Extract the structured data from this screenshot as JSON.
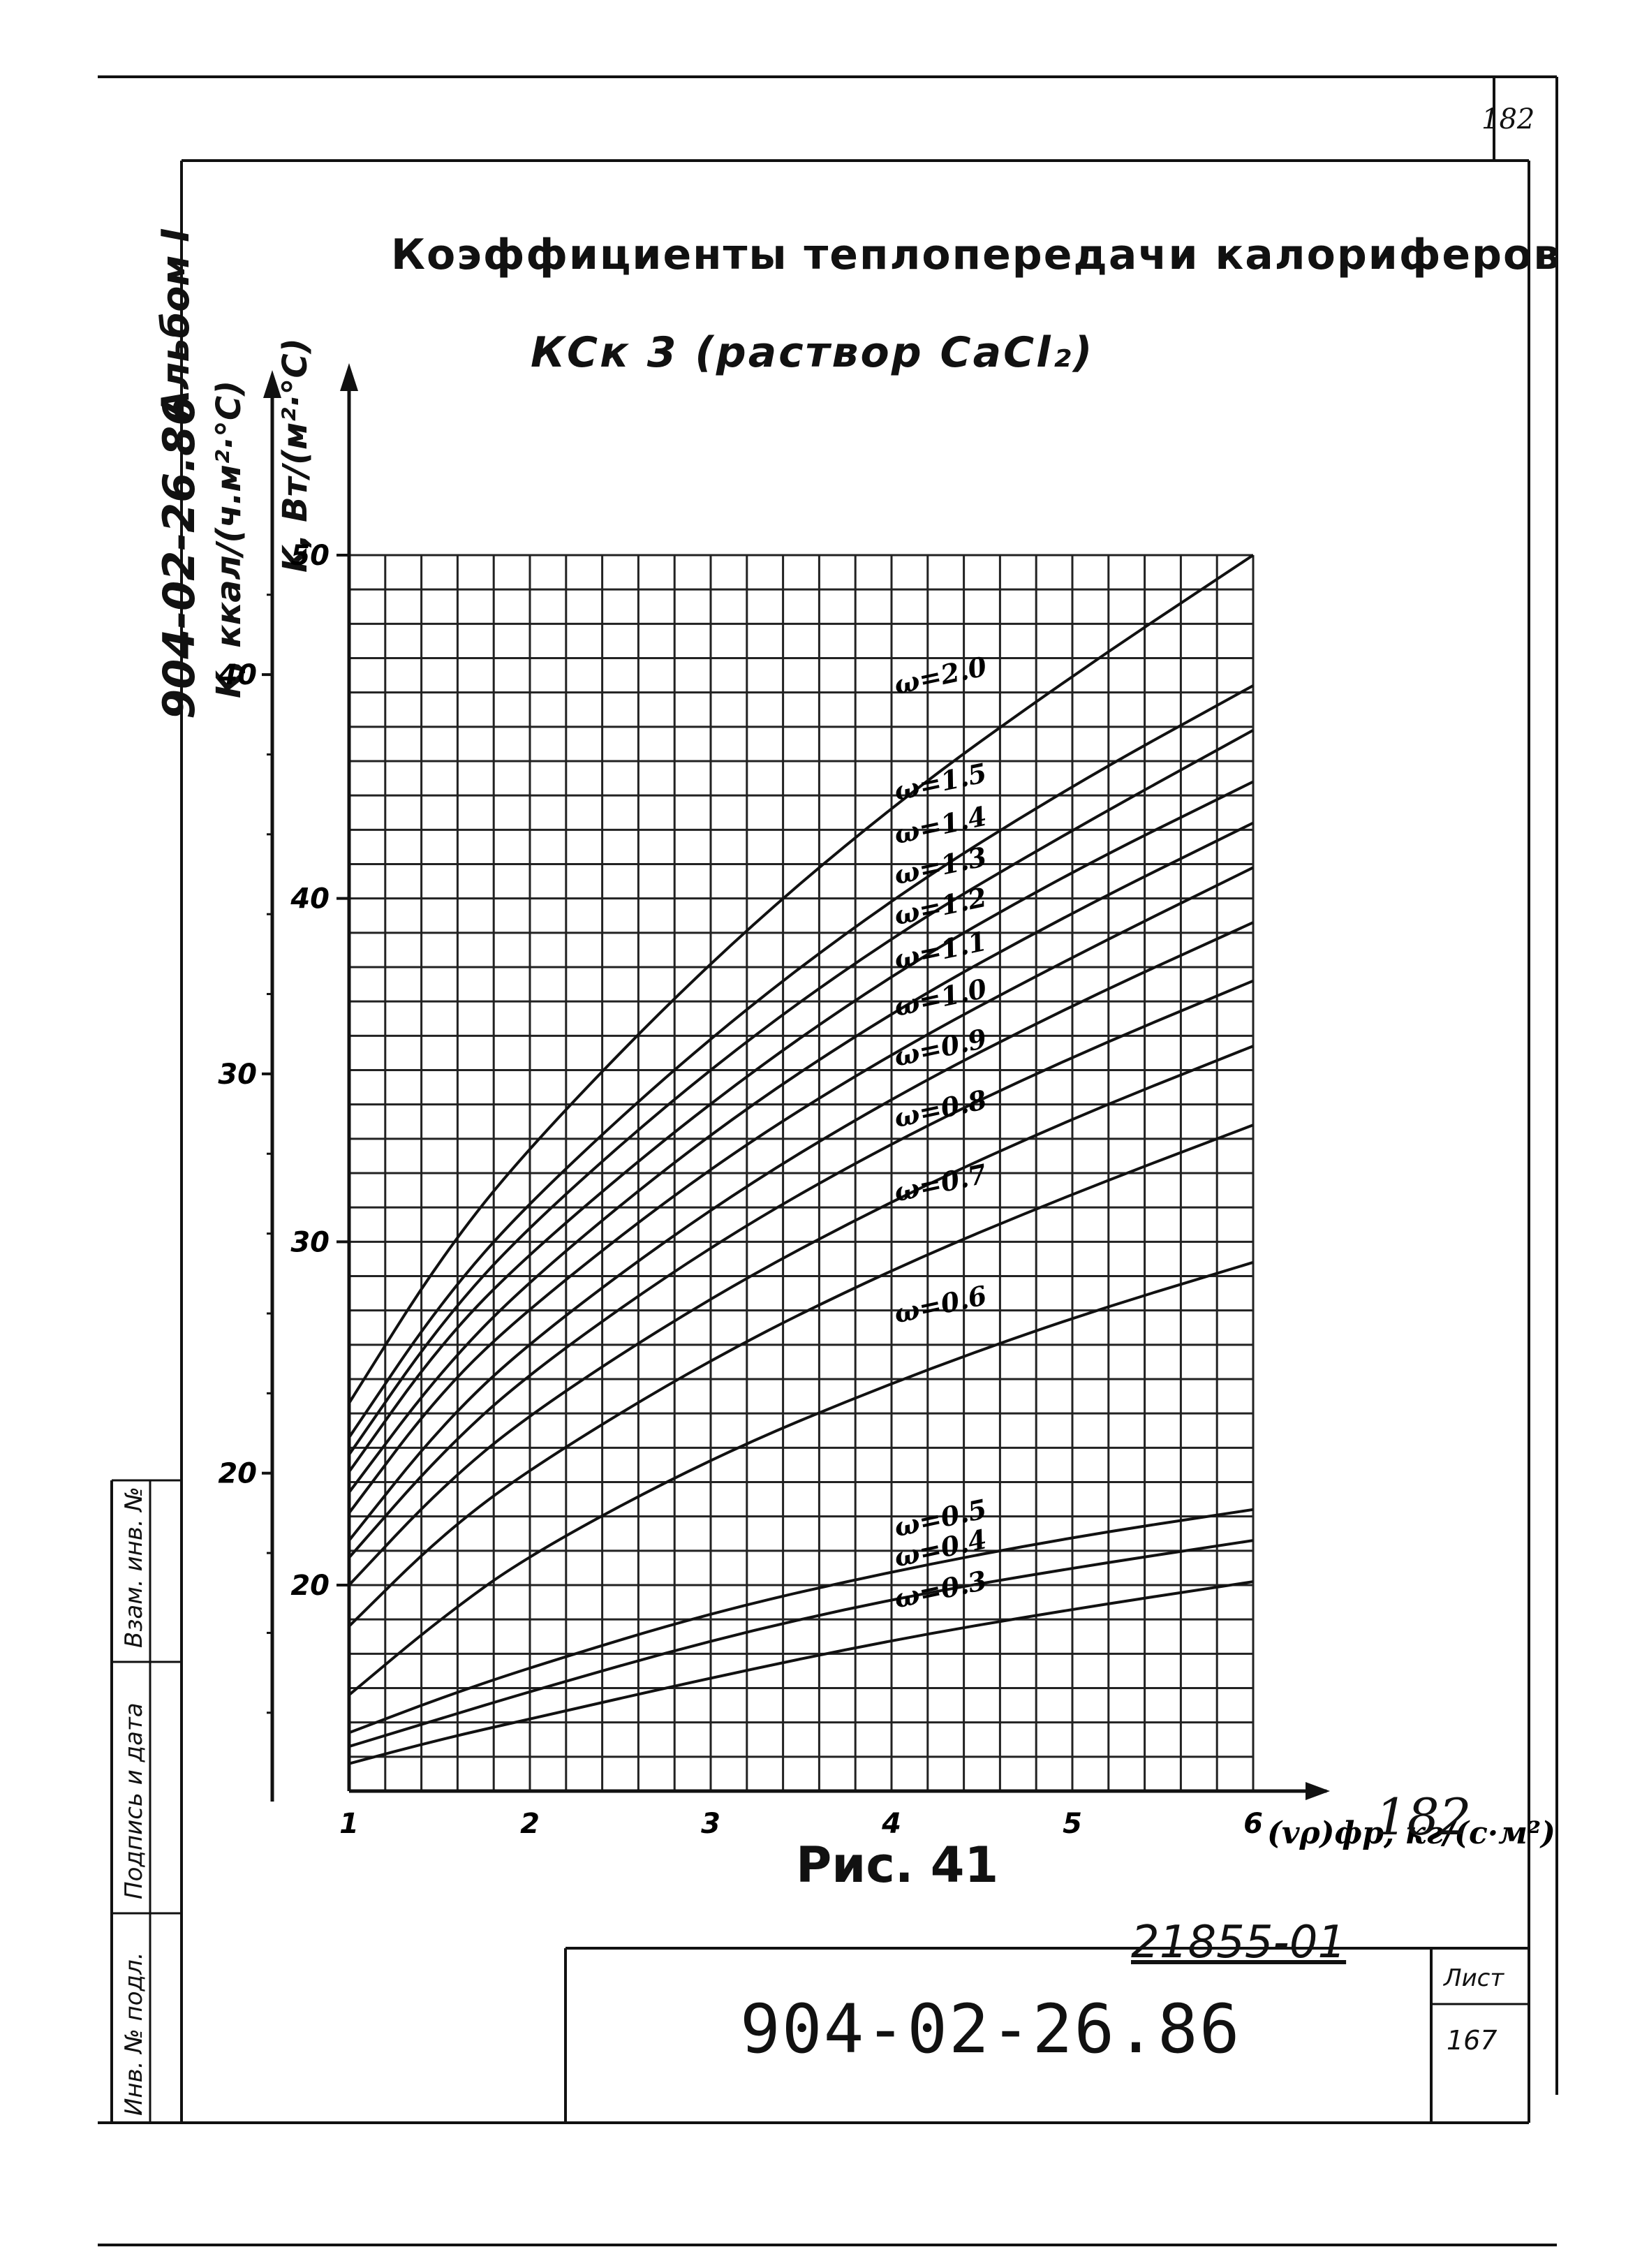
{
  "page": {
    "page_number": "182",
    "side_code": "904-02-26.86",
    "album": "Альбом I",
    "figure_label": "Рис. 41",
    "handwritten_number": "182",
    "document_number": "21855-01",
    "stamp_code": "904-02-26.86",
    "sheet_label": "Лист",
    "sheet_number": "167",
    "left_strip": [
      "Взам. инв. №",
      "Подпись и дата",
      "Инв. № подл."
    ]
  },
  "chart_data": {
    "type": "line",
    "title": "Коэффициенты теплопередачи калориферов",
    "subtitle": "КСк 3   (раствор CaCl₂)",
    "xlabel": "(vρ)фр, кг/(с·м²)",
    "ylabel_left": "K, ккал/(ч.м²·°С)",
    "ylabel_right": "K, Вт/(м²·°С)",
    "xlim": [
      1,
      6
    ],
    "ylim": [
      14,
      50
    ],
    "x_ticks": [
      "1",
      "2",
      "3",
      "4",
      "5",
      "6"
    ],
    "y_ticks_w": [
      "20",
      "30",
      "40",
      "50"
    ],
    "y_ticks_kcal": [
      "20",
      "30",
      "40"
    ],
    "grid": true,
    "x": [
      1,
      1.5,
      2,
      3,
      4,
      5,
      6
    ],
    "series": [
      {
        "name": "ω=2.0",
        "values": [
          25.3,
          29.5,
          32.8,
          38.2,
          42.7,
          46.5,
          50.0
        ]
      },
      {
        "name": "ω=1.5",
        "values": [
          24.3,
          28.2,
          31.2,
          36.0,
          40.0,
          43.3,
          46.2
        ]
      },
      {
        "name": "ω=1.4",
        "values": [
          23.8,
          27.6,
          30.5,
          35.1,
          38.9,
          42.0,
          44.9
        ]
      },
      {
        "name": "ω=1.3",
        "values": [
          23.3,
          27.0,
          29.7,
          34.1,
          37.8,
          40.8,
          43.4
        ]
      },
      {
        "name": "ω=1.2",
        "values": [
          22.7,
          26.2,
          28.9,
          33.2,
          36.7,
          39.6,
          42.2
        ]
      },
      {
        "name": "ω=1.1",
        "values": [
          22.1,
          25.6,
          28.1,
          32.2,
          35.5,
          38.3,
          40.9
        ]
      },
      {
        "name": "ω=1.0",
        "values": [
          21.3,
          24.6,
          27.1,
          31.0,
          34.2,
          36.9,
          39.3
        ]
      },
      {
        "name": "ω=0.9",
        "values": [
          20.8,
          23.8,
          26.2,
          29.9,
          32.9,
          35.4,
          37.6
        ]
      },
      {
        "name": "ω=0.8",
        "values": [
          20.0,
          22.8,
          25.0,
          28.4,
          31.2,
          33.6,
          35.7
        ]
      },
      {
        "name": "ω=0.7",
        "values": [
          18.8,
          21.4,
          23.4,
          26.6,
          29.2,
          31.4,
          33.4
        ]
      },
      {
        "name": "ω=0.6",
        "values": [
          16.8,
          19.0,
          20.9,
          23.7,
          25.9,
          27.8,
          29.4
        ]
      },
      {
        "name": "ω=0.5",
        "values": [
          15.7,
          16.7,
          17.6,
          19.2,
          20.4,
          21.4,
          22.2
        ]
      },
      {
        "name": "ω=0.4",
        "values": [
          15.3,
          16.1,
          16.9,
          18.4,
          19.6,
          20.5,
          21.3
        ]
      },
      {
        "name": "ω=0.3",
        "values": [
          14.8,
          15.5,
          16.1,
          17.3,
          18.4,
          19.3,
          20.1
        ]
      }
    ]
  }
}
